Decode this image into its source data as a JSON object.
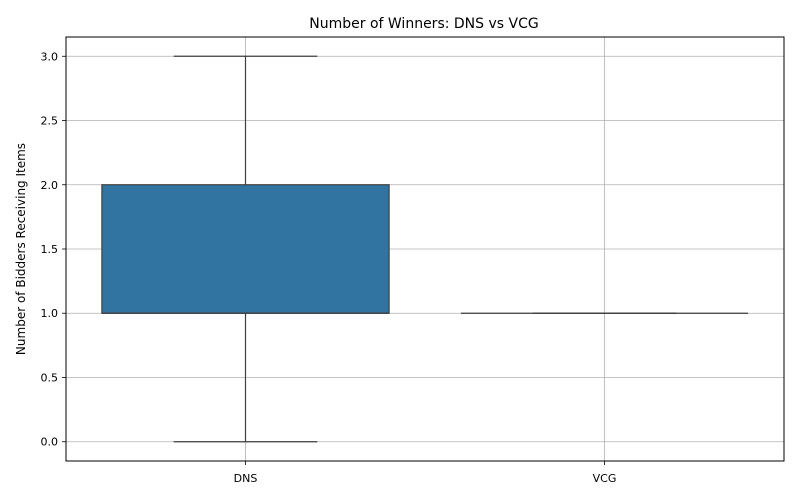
{
  "chart_data": {
    "type": "box",
    "title": "Number of Winners: DNS vs VCG",
    "xlabel": "",
    "ylabel": "Number of Bidders Receiving Items",
    "categories": [
      "DNS",
      "VCG"
    ],
    "boxes": [
      {
        "category": "DNS",
        "whisker_low": 0.0,
        "q1": 1.0,
        "median": 1.0,
        "q3": 2.0,
        "whisker_high": 3.0,
        "color": "#3274a1"
      },
      {
        "category": "VCG",
        "whisker_low": 1.0,
        "q1": 1.0,
        "median": 1.0,
        "q3": 1.0,
        "whisker_high": 1.0,
        "color": "#e1812c"
      }
    ],
    "ylim": [
      -0.15,
      3.15
    ],
    "yticks": [
      "0.0",
      "0.5",
      "1.0",
      "1.5",
      "2.0",
      "2.5",
      "3.0"
    ],
    "grid": true
  }
}
